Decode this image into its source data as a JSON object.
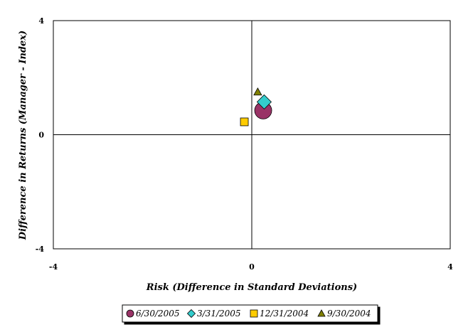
{
  "chart_data": {
    "type": "scatter",
    "title": "",
    "xlabel": "Risk (Difference in Standard Deviations)",
    "ylabel": "Difference in Returns (Manager - Index)",
    "xlim": [
      -4,
      4
    ],
    "ylim": [
      -4,
      4
    ],
    "x_ticks": [
      "-4",
      "0",
      "4"
    ],
    "y_ticks": [
      "4",
      "0",
      "-4"
    ],
    "grid": false,
    "legend_position": "bottom",
    "series": [
      {
        "name": "6/30/2005",
        "marker": "circle",
        "color": "#993366",
        "x": 0.23,
        "y": 0.85
      },
      {
        "name": "3/31/2005",
        "marker": "diamond",
        "color": "#33CCCC",
        "x": 0.25,
        "y": 1.15
      },
      {
        "name": "12/31/2004",
        "marker": "square",
        "color": "#FFCC00",
        "x": -0.15,
        "y": 0.45
      },
      {
        "name": "9/30/2004",
        "marker": "triangle",
        "color": "#808000",
        "x": 0.12,
        "y": 1.5
      }
    ]
  }
}
